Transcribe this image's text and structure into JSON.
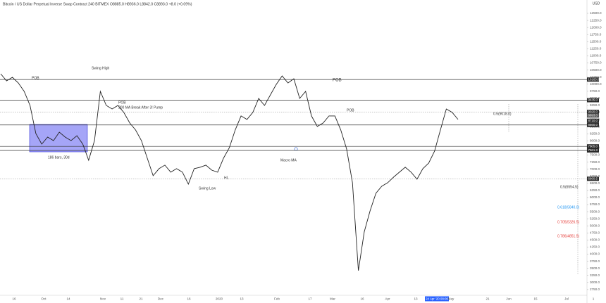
{
  "chart_data": {
    "type": "line",
    "title": "Bitcoin / US Dollar Perpetual Inverse Swap Contract  240  BITMEX  O8885.0  H8936.0  L8842.0  C8893.0  +8.0 (+0.09%)",
    "currency": "USD",
    "color": "#222222",
    "values": [
      10366,
      10118,
      10242,
      10044,
      9746,
      9250,
      8257,
      7885,
      8133,
      8009,
      8307,
      8133,
      8009,
      8183,
      7885,
      7315,
      8009,
      9746,
      9250,
      9126,
      9250,
      9002,
      8630,
      8382,
      8009,
      7389,
      6769,
      7017,
      7141,
      6893,
      7017,
      6893,
      6471,
      7017,
      7067,
      7141,
      6967,
      6893,
      7389,
      7761,
      8382,
      8878,
      8754,
      9002,
      9498,
      9250,
      9622,
      9994,
      10292,
      10044,
      10193,
      9498,
      9746,
      8878,
      8506,
      8630,
      8878,
      8878,
      8382,
      7712,
      6521,
      3420,
      4784,
      5528,
      6149,
      6397,
      6521,
      6719,
      6893,
      7067,
      6893,
      6645,
      7017,
      7215,
      7637,
      8382,
      9126,
      9002,
      8754
    ],
    "ylim": [
      2276,
      12971
    ],
    "yticks": [
      {
        "value": 2750,
        "label": "2750.0"
      },
      {
        "value": 3000,
        "label": "3000.0"
      },
      {
        "value": 3250,
        "label": "3250.0"
      },
      {
        "value": 3500,
        "label": "3500.0"
      },
      {
        "value": 3750,
        "label": "3750.0"
      },
      {
        "value": 4000,
        "label": "4000.0"
      },
      {
        "value": 4250,
        "label": "4250.0"
      },
      {
        "value": 4500,
        "label": "4500.0"
      },
      {
        "value": 4750,
        "label": "4750.0"
      },
      {
        "value": 5000,
        "label": "5000.0"
      },
      {
        "value": 5250,
        "label": "5250.0"
      },
      {
        "value": 5500,
        "label": "5500.0"
      },
      {
        "value": 5750,
        "label": "5750.0"
      },
      {
        "value": 6000,
        "label": "6000.0"
      },
      {
        "value": 6250,
        "label": "6250.0"
      },
      {
        "value": 6500,
        "label": "6500.0"
      },
      {
        "value": 6750,
        "label": "6750.0"
      },
      {
        "value": 7000,
        "label": "7000.0"
      },
      {
        "value": 7250,
        "label": "7250.0"
      },
      {
        "value": 7500,
        "label": "7500.0"
      },
      {
        "value": 7750,
        "label": "7750.0"
      },
      {
        "value": 8000,
        "label": "8000.0"
      },
      {
        "value": 8250,
        "label": "8250.0"
      },
      {
        "value": 8500,
        "label": "8500.0"
      },
      {
        "value": 8750,
        "label": "8750.0"
      },
      {
        "value": 9000,
        "label": "9000.0"
      },
      {
        "value": 9250,
        "label": "9250.0"
      },
      {
        "value": 9500,
        "label": "9500.0"
      },
      {
        "value": 9750,
        "label": "9750.0"
      },
      {
        "value": 10000,
        "label": "10000.0"
      },
      {
        "value": 10250,
        "label": "10250.0"
      },
      {
        "value": 10500,
        "label": "10500.0"
      },
      {
        "value": 10750,
        "label": "10750.0"
      },
      {
        "value": 11000,
        "label": "11000.0"
      },
      {
        "value": 11250,
        "label": "11250.0"
      },
      {
        "value": 11500,
        "label": "11500.0"
      },
      {
        "value": 11750,
        "label": "11750.0"
      },
      {
        "value": 12000,
        "label": "12000.0"
      },
      {
        "value": 12250,
        "label": "12250.0"
      },
      {
        "value": 12500,
        "label": "12500.0"
      }
    ],
    "levels": [
      {
        "value": 10163,
        "label": "10163.0"
      },
      {
        "value": 9435,
        "label": "9435.0"
      },
      {
        "value": 9020,
        "label": "9020.0"
      },
      {
        "value": 8893,
        "label": "8893.0"
      },
      {
        "value": 8710,
        "label": "8710.0"
      },
      {
        "value": 8560,
        "label": "8560.0"
      },
      {
        "value": 7805,
        "label": "7805.0"
      },
      {
        "value": 7661.3,
        "label": "7661.3"
      },
      {
        "value": 6660.5,
        "label": "6660.5"
      }
    ],
    "x_labels": [
      "16",
      "Oct",
      "14",
      "Nov",
      "11",
      "21",
      "Dec",
      "16",
      "2020",
      "13",
      "Feb",
      "17",
      "Mar",
      "16",
      "Apr",
      "13",
      "24 Apr '20  08:00",
      "May",
      "21",
      "Jun",
      "15",
      "Jul",
      "1"
    ],
    "annotations": [
      "POB",
      "Swing High",
      "POB",
      "200 MA Break After 3! Pump",
      "186 bars, 30d",
      "Swing Low",
      "HL",
      "Macro MA",
      "POB",
      "POB"
    ],
    "fib_labels": [
      "0.5(9018.0)",
      "0.5(6554.5)",
      "0.618(5840.0)",
      "0.705(5326.5)",
      "0.786(4851.5)"
    ]
  }
}
